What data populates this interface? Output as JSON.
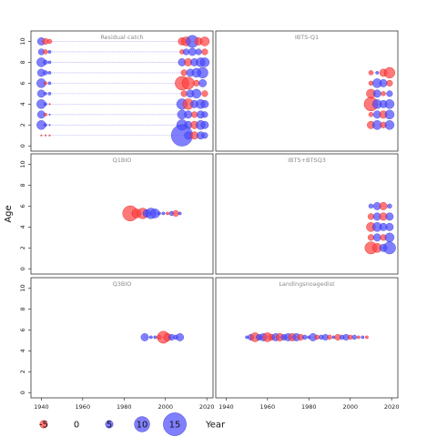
{
  "chart_data": {
    "type": "scatter",
    "subtype": "bubble-residuals",
    "ylabel": "Age",
    "xlabel": "Year",
    "xlim": [
      1935,
      2023
    ],
    "ylim": [
      -0.5,
      11
    ],
    "x_ticks": [
      1940,
      1960,
      1980,
      2000,
      2020
    ],
    "y_ticks": [
      0,
      2,
      4,
      6,
      8,
      10
    ],
    "grid": false,
    "colors": {
      "negative": "#ff4040",
      "positive": "#4a4aff"
    },
    "panels": [
      {
        "title": "Residual catch",
        "points": [
          {
            "x": 1940,
            "y": 10,
            "v": 5
          },
          {
            "x": 1942,
            "y": 10,
            "v": -4
          },
          {
            "x": 1944,
            "y": 10,
            "v": -3
          },
          {
            "x": 1940,
            "y": 9,
            "v": 4
          },
          {
            "x": 1942,
            "y": 9,
            "v": -3
          },
          {
            "x": 1944,
            "y": 9,
            "v": 2
          },
          {
            "x": 1940,
            "y": 8,
            "v": 6
          },
          {
            "x": 1942,
            "y": 8,
            "v": 3
          },
          {
            "x": 1944,
            "y": 8,
            "v": 2
          },
          {
            "x": 1940,
            "y": 7,
            "v": 5
          },
          {
            "x": 1942,
            "y": 7,
            "v": 3
          },
          {
            "x": 1944,
            "y": 7,
            "v": 2
          },
          {
            "x": 1940,
            "y": 6,
            "v": 6
          },
          {
            "x": 1942,
            "y": 6,
            "v": -2
          },
          {
            "x": 1944,
            "y": 6,
            "v": 2
          },
          {
            "x": 1940,
            "y": 5,
            "v": 5
          },
          {
            "x": 1942,
            "y": 5,
            "v": 2
          },
          {
            "x": 1944,
            "y": 5,
            "v": 2
          },
          {
            "x": 1940,
            "y": 4,
            "v": 6
          },
          {
            "x": 1942,
            "y": 4,
            "v": 2
          },
          {
            "x": 1944,
            "y": 4,
            "v": -1
          },
          {
            "x": 1940,
            "y": 3,
            "v": 5
          },
          {
            "x": 1942,
            "y": 3,
            "v": -2
          },
          {
            "x": 1944,
            "y": 3,
            "v": 1
          },
          {
            "x": 1940,
            "y": 2,
            "v": 6
          },
          {
            "x": 1942,
            "y": 2,
            "v": 2
          },
          {
            "x": 1944,
            "y": 2,
            "v": 1
          },
          {
            "x": 1940,
            "y": 1,
            "v": -1
          },
          {
            "x": 1942,
            "y": 1,
            "v": -1
          },
          {
            "x": 1944,
            "y": 1,
            "v": -1
          },
          {
            "x": 2008,
            "y": 10,
            "v": -5
          },
          {
            "x": 2010,
            "y": 10,
            "v": -6
          },
          {
            "x": 2013,
            "y": 10,
            "v": 8
          },
          {
            "x": 2016,
            "y": 10,
            "v": -5
          },
          {
            "x": 2019,
            "y": 10,
            "v": -6
          },
          {
            "x": 2008,
            "y": 9,
            "v": -3
          },
          {
            "x": 2010,
            "y": 9,
            "v": 4
          },
          {
            "x": 2013,
            "y": 9,
            "v": 5
          },
          {
            "x": 2016,
            "y": 9,
            "v": 4
          },
          {
            "x": 2019,
            "y": 9,
            "v": -4
          },
          {
            "x": 2008,
            "y": 8,
            "v": 5
          },
          {
            "x": 2011,
            "y": 8,
            "v": -5
          },
          {
            "x": 2014,
            "y": 8,
            "v": 5
          },
          {
            "x": 2017,
            "y": 8,
            "v": 6
          },
          {
            "x": 2019,
            "y": 8,
            "v": 6
          },
          {
            "x": 2009,
            "y": 7,
            "v": -4
          },
          {
            "x": 2012,
            "y": 7,
            "v": 5
          },
          {
            "x": 2015,
            "y": 7,
            "v": 6
          },
          {
            "x": 2018,
            "y": 7,
            "v": 7
          },
          {
            "x": 2008,
            "y": 6,
            "v": -9
          },
          {
            "x": 2011,
            "y": 6,
            "v": -8
          },
          {
            "x": 2015,
            "y": 6,
            "v": -4
          },
          {
            "x": 2018,
            "y": 6,
            "v": 5
          },
          {
            "x": 2009,
            "y": 5,
            "v": -4
          },
          {
            "x": 2012,
            "y": 5,
            "v": 5
          },
          {
            "x": 2015,
            "y": 5,
            "v": 6
          },
          {
            "x": 2019,
            "y": 5,
            "v": -4
          },
          {
            "x": 2008,
            "y": 4,
            "v": 7
          },
          {
            "x": 2011,
            "y": 4,
            "v": -7
          },
          {
            "x": 2014,
            "y": 4,
            "v": 5
          },
          {
            "x": 2017,
            "y": 4,
            "v": 6
          },
          {
            "x": 2019,
            "y": 4,
            "v": 5
          },
          {
            "x": 2008,
            "y": 3,
            "v": 6
          },
          {
            "x": 2011,
            "y": 3,
            "v": 5
          },
          {
            "x": 2014,
            "y": 3,
            "v": -4
          },
          {
            "x": 2017,
            "y": 3,
            "v": 5
          },
          {
            "x": 2019,
            "y": 3,
            "v": 4
          },
          {
            "x": 2008,
            "y": 2,
            "v": 7
          },
          {
            "x": 2011,
            "y": 2,
            "v": 5
          },
          {
            "x": 2014,
            "y": 2,
            "v": -5
          },
          {
            "x": 2017,
            "y": 2,
            "v": 6
          },
          {
            "x": 2019,
            "y": 2,
            "v": 5
          },
          {
            "x": 2008,
            "y": 1,
            "v": 14
          },
          {
            "x": 2011,
            "y": 1,
            "v": 5
          },
          {
            "x": 2014,
            "y": 1,
            "v": -5
          },
          {
            "x": 2017,
            "y": 1,
            "v": 5
          },
          {
            "x": 2019,
            "y": 1,
            "v": 4
          }
        ]
      },
      {
        "title": "IBTS-Q1",
        "points": [
          {
            "x": 2010,
            "y": 7,
            "v": -3
          },
          {
            "x": 2013,
            "y": 7,
            "v": 2
          },
          {
            "x": 2016,
            "y": 7,
            "v": -5
          },
          {
            "x": 2019,
            "y": 7,
            "v": -7
          },
          {
            "x": 2010,
            "y": 6,
            "v": -3
          },
          {
            "x": 2013,
            "y": 6,
            "v": 6
          },
          {
            "x": 2016,
            "y": 6,
            "v": 5
          },
          {
            "x": 2019,
            "y": 6,
            "v": -4
          },
          {
            "x": 2010,
            "y": 5,
            "v": -6
          },
          {
            "x": 2013,
            "y": 5,
            "v": 5
          },
          {
            "x": 2016,
            "y": 5,
            "v": -3
          },
          {
            "x": 2019,
            "y": 5,
            "v": 4
          },
          {
            "x": 2010,
            "y": 4,
            "v": -9
          },
          {
            "x": 2013,
            "y": 4,
            "v": 6
          },
          {
            "x": 2016,
            "y": 4,
            "v": 5
          },
          {
            "x": 2019,
            "y": 4,
            "v": 6
          },
          {
            "x": 2010,
            "y": 3,
            "v": -3
          },
          {
            "x": 2013,
            "y": 3,
            "v": 5
          },
          {
            "x": 2016,
            "y": 3,
            "v": -5
          },
          {
            "x": 2019,
            "y": 3,
            "v": 6
          },
          {
            "x": 2010,
            "y": 2,
            "v": -5
          },
          {
            "x": 2013,
            "y": 2,
            "v": 6
          },
          {
            "x": 2016,
            "y": 2,
            "v": -4
          },
          {
            "x": 2019,
            "y": 2,
            "v": 6
          }
        ]
      },
      {
        "title": "Q1BIO",
        "points": [
          {
            "x": 1983,
            "y": 5.3,
            "v": -10
          },
          {
            "x": 1986,
            "y": 5.3,
            "v": -6
          },
          {
            "x": 1989,
            "y": 5.3,
            "v": -7
          },
          {
            "x": 1991,
            "y": 5.3,
            "v": 5
          },
          {
            "x": 1993,
            "y": 5.3,
            "v": 7
          },
          {
            "x": 1995,
            "y": 5.3,
            "v": 6
          },
          {
            "x": 1997,
            "y": 5.3,
            "v": 2
          },
          {
            "x": 1999,
            "y": 5.3,
            "v": 2
          },
          {
            "x": 2001,
            "y": 5.3,
            "v": -2
          },
          {
            "x": 2003,
            "y": 5.3,
            "v": 3
          },
          {
            "x": 2005,
            "y": 5.3,
            "v": -4
          },
          {
            "x": 2007,
            "y": 5.3,
            "v": 2
          }
        ]
      },
      {
        "title": "IBTS+BTSQ3",
        "points": [
          {
            "x": 2010,
            "y": 6,
            "v": 3
          },
          {
            "x": 2013,
            "y": 6,
            "v": 5
          },
          {
            "x": 2016,
            "y": 6,
            "v": -5
          },
          {
            "x": 2019,
            "y": 6,
            "v": 3
          },
          {
            "x": 2010,
            "y": 5,
            "v": -4
          },
          {
            "x": 2013,
            "y": 5,
            "v": 5
          },
          {
            "x": 2016,
            "y": 5,
            "v": -5
          },
          {
            "x": 2019,
            "y": 5,
            "v": 5
          },
          {
            "x": 2010,
            "y": 4,
            "v": -6
          },
          {
            "x": 2013,
            "y": 4,
            "v": 6
          },
          {
            "x": 2016,
            "y": 4,
            "v": 5
          },
          {
            "x": 2019,
            "y": 4,
            "v": 5
          },
          {
            "x": 2010,
            "y": 3,
            "v": -4
          },
          {
            "x": 2013,
            "y": 3,
            "v": 5
          },
          {
            "x": 2016,
            "y": 3,
            "v": -4
          },
          {
            "x": 2019,
            "y": 3,
            "v": 6
          },
          {
            "x": 2010,
            "y": 2,
            "v": -8
          },
          {
            "x": 2013,
            "y": 2,
            "v": -6
          },
          {
            "x": 2016,
            "y": 2,
            "v": 5
          },
          {
            "x": 2019,
            "y": 2,
            "v": 8
          }
        ]
      },
      {
        "title": "Q3BIO",
        "points": [
          {
            "x": 1990,
            "y": 5.3,
            "v": 5
          },
          {
            "x": 1993,
            "y": 5.3,
            "v": 2
          },
          {
            "x": 1995,
            "y": 5.3,
            "v": 2
          },
          {
            "x": 1997,
            "y": 5.3,
            "v": -3
          },
          {
            "x": 1999,
            "y": 5.3,
            "v": -8
          },
          {
            "x": 2001,
            "y": 5.3,
            "v": -5
          },
          {
            "x": 2003,
            "y": 5.3,
            "v": 4
          },
          {
            "x": 2005,
            "y": 5.3,
            "v": 3
          },
          {
            "x": 2007,
            "y": 5.3,
            "v": 5
          }
        ]
      },
      {
        "title": "Landingsnoagedist",
        "points": [
          {
            "x": 1950,
            "y": 5.3,
            "v": 2
          },
          {
            "x": 1952,
            "y": 5.3,
            "v": 4
          },
          {
            "x": 1954,
            "y": 5.3,
            "v": -6
          },
          {
            "x": 1956,
            "y": 5.3,
            "v": 4
          },
          {
            "x": 1958,
            "y": 5.3,
            "v": 5
          },
          {
            "x": 1960,
            "y": 5.3,
            "v": -6
          },
          {
            "x": 1962,
            "y": 5.3,
            "v": -4
          },
          {
            "x": 1964,
            "y": 5.3,
            "v": 5
          },
          {
            "x": 1966,
            "y": 5.3,
            "v": -5
          },
          {
            "x": 1968,
            "y": 5.3,
            "v": 4
          },
          {
            "x": 1970,
            "y": 5.3,
            "v": 5
          },
          {
            "x": 1972,
            "y": 5.3,
            "v": -5
          },
          {
            "x": 1974,
            "y": 5.3,
            "v": 5
          },
          {
            "x": 1976,
            "y": 5.3,
            "v": -4
          },
          {
            "x": 1978,
            "y": 5.3,
            "v": 3
          },
          {
            "x": 1980,
            "y": 5.3,
            "v": 2
          },
          {
            "x": 1982,
            "y": 5.3,
            "v": 5
          },
          {
            "x": 1984,
            "y": 5.3,
            "v": -3
          },
          {
            "x": 1986,
            "y": 5.3,
            "v": 3
          },
          {
            "x": 1988,
            "y": 5.3,
            "v": 4
          },
          {
            "x": 1990,
            "y": 5.3,
            "v": -3
          },
          {
            "x": 1992,
            "y": 5.3,
            "v": 2
          },
          {
            "x": 1994,
            "y": 5.3,
            "v": -4
          },
          {
            "x": 1996,
            "y": 5.3,
            "v": 3
          },
          {
            "x": 1998,
            "y": 5.3,
            "v": 4
          },
          {
            "x": 2000,
            "y": 5.3,
            "v": -3
          },
          {
            "x": 2002,
            "y": 5.3,
            "v": 3
          },
          {
            "x": 2004,
            "y": 5.3,
            "v": -2
          },
          {
            "x": 2006,
            "y": 5.3,
            "v": 2
          },
          {
            "x": 2008,
            "y": 5.3,
            "v": -2
          }
        ]
      }
    ],
    "legend": {
      "position": "bottom",
      "entries": [
        {
          "label": "-5",
          "value": -5
        },
        {
          "label": "0",
          "value": 0
        },
        {
          "label": "5",
          "value": 5
        },
        {
          "label": "10",
          "value": 10
        },
        {
          "label": "15",
          "value": 15
        }
      ]
    }
  }
}
